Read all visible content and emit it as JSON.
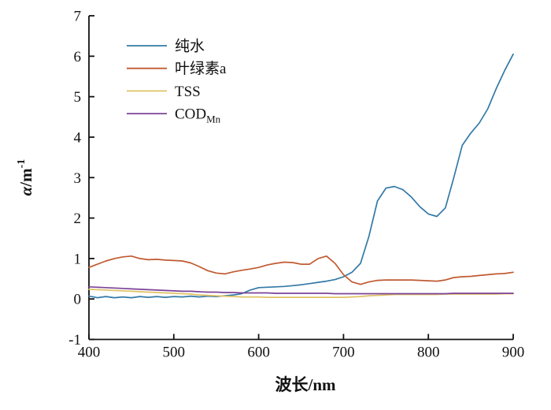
{
  "figure": {
    "background": "#ffffff",
    "axis_color": "#111111"
  },
  "chart_data": {
    "type": "line",
    "title": "",
    "xlabel": "波长/nm",
    "ylabel": "α/m-1",
    "ylabel_parts": {
      "symbol": "α",
      "unit": "/m",
      "exponent": "-1"
    },
    "xlim": [
      400,
      900
    ],
    "ylim": [
      -1,
      7
    ],
    "x_ticks": [
      400,
      500,
      600,
      700,
      800,
      900
    ],
    "y_ticks": [
      -1,
      0,
      1,
      2,
      3,
      4,
      5,
      6,
      7
    ],
    "grid": false,
    "legend_position": "upper-left-inside",
    "x": [
      400,
      410,
      420,
      430,
      440,
      450,
      460,
      470,
      480,
      490,
      500,
      510,
      520,
      530,
      540,
      550,
      560,
      570,
      580,
      590,
      600,
      610,
      620,
      630,
      640,
      650,
      660,
      670,
      680,
      690,
      700,
      710,
      720,
      730,
      740,
      750,
      760,
      770,
      780,
      790,
      800,
      810,
      820,
      830,
      840,
      850,
      860,
      870,
      880,
      890,
      900
    ],
    "series": [
      {
        "id": "pure-water",
        "name": "纯水",
        "color": "#3379a7",
        "values": [
          0.07,
          0.03,
          0.06,
          0.03,
          0.05,
          0.03,
          0.06,
          0.04,
          0.06,
          0.04,
          0.06,
          0.05,
          0.07,
          0.05,
          0.07,
          0.06,
          0.08,
          0.1,
          0.13,
          0.22,
          0.28,
          0.29,
          0.3,
          0.31,
          0.33,
          0.35,
          0.38,
          0.41,
          0.44,
          0.48,
          0.55,
          0.66,
          0.88,
          1.55,
          2.42,
          2.74,
          2.78,
          2.7,
          2.52,
          2.28,
          2.1,
          2.04,
          2.25,
          3.0,
          3.8,
          4.1,
          4.35,
          4.7,
          5.2,
          5.65,
          6.05
        ]
      },
      {
        "id": "chlorophyll-a",
        "name": "叶绿素a",
        "color": "#c05a31",
        "values": [
          0.78,
          0.86,
          0.94,
          1.0,
          1.04,
          1.06,
          1.0,
          0.97,
          0.98,
          0.96,
          0.95,
          0.94,
          0.89,
          0.8,
          0.7,
          0.64,
          0.62,
          0.67,
          0.71,
          0.74,
          0.78,
          0.84,
          0.88,
          0.91,
          0.9,
          0.86,
          0.86,
          1.0,
          1.06,
          0.88,
          0.6,
          0.42,
          0.36,
          0.42,
          0.46,
          0.47,
          0.47,
          0.47,
          0.47,
          0.46,
          0.45,
          0.44,
          0.47,
          0.53,
          0.55,
          0.56,
          0.58,
          0.6,
          0.62,
          0.63,
          0.66
        ]
      },
      {
        "id": "tss",
        "name": "TSS",
        "color": "#e0c266",
        "values": [
          0.24,
          0.23,
          0.22,
          0.21,
          0.2,
          0.19,
          0.18,
          0.17,
          0.16,
          0.15,
          0.14,
          0.13,
          0.12,
          0.1,
          0.09,
          0.08,
          0.07,
          0.06,
          0.05,
          0.05,
          0.05,
          0.04,
          0.04,
          0.04,
          0.04,
          0.04,
          0.04,
          0.04,
          0.04,
          0.04,
          0.04,
          0.05,
          0.06,
          0.08,
          0.09,
          0.1,
          0.11,
          0.11,
          0.11,
          0.11,
          0.11,
          0.11,
          0.12,
          0.12,
          0.12,
          0.12,
          0.12,
          0.12,
          0.12,
          0.13,
          0.13
        ]
      },
      {
        "id": "cod-mn",
        "name": "COD",
        "name_subscript": "Mn",
        "color": "#7b4397",
        "values": [
          0.3,
          0.29,
          0.28,
          0.27,
          0.26,
          0.25,
          0.24,
          0.23,
          0.22,
          0.21,
          0.2,
          0.19,
          0.19,
          0.18,
          0.17,
          0.17,
          0.16,
          0.16,
          0.15,
          0.15,
          0.15,
          0.15,
          0.14,
          0.14,
          0.14,
          0.14,
          0.14,
          0.14,
          0.14,
          0.13,
          0.13,
          0.13,
          0.13,
          0.13,
          0.13,
          0.13,
          0.13,
          0.13,
          0.13,
          0.13,
          0.13,
          0.13,
          0.13,
          0.14,
          0.14,
          0.14,
          0.14,
          0.14,
          0.14,
          0.14,
          0.14
        ]
      }
    ]
  }
}
